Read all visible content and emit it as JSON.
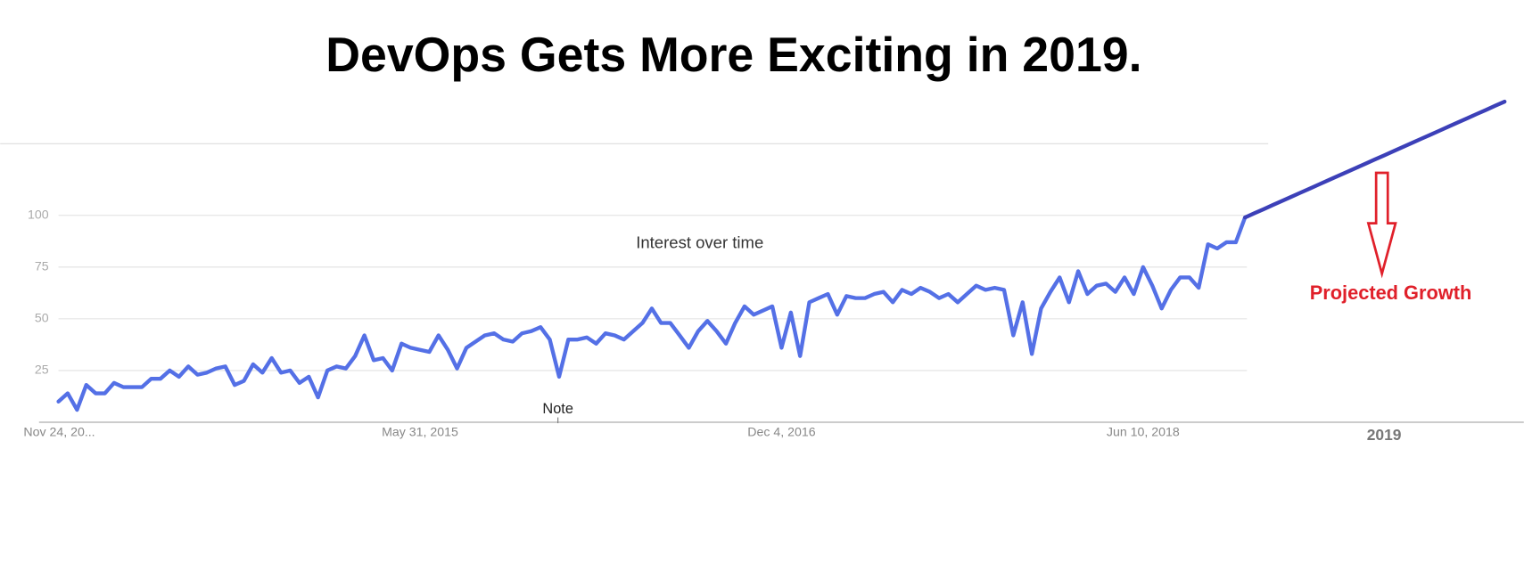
{
  "chart_data": {
    "type": "line",
    "title": "DevOps Gets More Exciting in 2019.",
    "subtitle": "Interest over time",
    "note": "Note",
    "annotation": "Projected Growth",
    "categories": [
      "Nov 24, 20...",
      null,
      null,
      null,
      null,
      null,
      null,
      null,
      null,
      null,
      null,
      null,
      null,
      null,
      null,
      null,
      null,
      null,
      null,
      null,
      null,
      null,
      null,
      null,
      null,
      null,
      null,
      null,
      null,
      null,
      null,
      null,
      null,
      null,
      null,
      null,
      null,
      null,
      null,
      "May 31, 2015",
      null,
      null,
      null,
      null,
      null,
      null,
      null,
      null,
      null,
      null,
      null,
      null,
      null,
      null,
      null,
      null,
      null,
      null,
      null,
      null,
      null,
      null,
      null,
      null,
      null,
      null,
      null,
      null,
      null,
      null,
      null,
      null,
      null,
      null,
      null,
      null,
      null,
      null,
      "Dec 4, 2016",
      null,
      null,
      null,
      null,
      null,
      null,
      null,
      null,
      null,
      null,
      null,
      null,
      null,
      null,
      null,
      null,
      null,
      null,
      null,
      null,
      null,
      null,
      null,
      null,
      null,
      null,
      null,
      null,
      null,
      null,
      null,
      null,
      null,
      null,
      null,
      null,
      null,
      null,
      "Jun 10, 2018",
      null,
      null,
      null,
      null,
      null,
      null,
      null,
      null,
      null,
      null,
      null,
      null,
      null,
      null,
      null,
      null,
      null,
      null,
      null,
      null,
      null,
      null,
      null,
      null,
      null,
      "2019",
      null,
      null,
      null,
      null,
      null,
      null,
      null,
      null,
      null,
      null,
      null,
      null,
      null
    ],
    "series": [
      {
        "color": "#5470e6",
        "values": [
          10,
          14,
          6,
          18,
          14,
          14,
          19,
          17,
          17,
          17,
          21,
          21,
          25,
          22,
          27,
          23,
          24,
          26,
          27,
          18,
          20,
          28,
          24,
          31,
          24,
          25,
          19,
          22,
          12,
          25,
          27,
          26,
          32,
          42,
          30,
          31,
          25,
          38,
          36,
          35,
          34,
          42,
          35,
          26,
          36,
          39,
          42,
          43,
          40,
          39,
          43,
          44,
          46,
          40,
          22,
          40,
          40,
          41,
          38,
          43,
          42,
          40,
          44,
          48,
          55,
          48,
          48,
          42,
          36,
          44,
          49,
          44,
          38,
          48,
          56,
          52,
          54,
          56,
          36,
          53,
          32,
          58,
          60,
          62,
          52,
          61,
          60,
          60,
          62,
          63,
          58,
          64,
          62,
          65,
          63,
          60,
          62,
          58,
          62,
          66,
          64,
          65,
          64,
          42,
          58,
          33,
          55,
          63,
          70,
          58,
          73,
          62,
          66,
          67,
          63,
          70,
          62,
          75,
          66,
          55,
          64,
          70,
          70,
          65,
          86,
          84,
          87,
          87,
          99,
          null,
          null,
          null,
          null,
          null,
          null,
          null,
          null,
          null,
          null,
          null,
          null,
          null,
          null,
          null,
          null,
          null,
          null,
          null,
          null,
          null,
          null,
          null,
          null,
          null,
          null,
          null,
          null
        ]
      },
      {
        "color": "#3c40b8",
        "values": [
          null,
          null,
          null,
          null,
          null,
          null,
          null,
          null,
          null,
          null,
          null,
          null,
          null,
          null,
          null,
          null,
          null,
          null,
          null,
          null,
          null,
          null,
          null,
          null,
          null,
          null,
          null,
          null,
          null,
          null,
          null,
          null,
          null,
          null,
          null,
          null,
          null,
          null,
          null,
          null,
          null,
          null,
          null,
          null,
          null,
          null,
          null,
          null,
          null,
          null,
          null,
          null,
          null,
          null,
          null,
          null,
          null,
          null,
          null,
          null,
          null,
          null,
          null,
          null,
          null,
          null,
          null,
          null,
          null,
          null,
          null,
          null,
          null,
          null,
          null,
          null,
          null,
          null,
          null,
          null,
          null,
          null,
          null,
          null,
          null,
          null,
          null,
          null,
          null,
          null,
          null,
          null,
          null,
          null,
          null,
          null,
          null,
          null,
          null,
          null,
          null,
          null,
          null,
          null,
          null,
          null,
          null,
          null,
          null,
          null,
          null,
          null,
          null,
          null,
          null,
          null,
          null,
          null,
          null,
          null,
          null,
          null,
          null,
          null,
          null,
          null,
          null,
          null,
          99,
          101,
          103,
          105,
          107,
          109,
          111,
          113,
          115,
          117,
          119,
          121,
          123,
          125,
          127,
          129,
          131,
          133,
          135,
          137,
          139,
          141,
          143,
          145,
          147,
          149,
          151,
          153,
          155
        ]
      }
    ],
    "ylim": [
      0,
      160
    ],
    "yticks": [
      25,
      50,
      75,
      100
    ],
    "grid": true,
    "annotation_color": "#e0202a"
  }
}
